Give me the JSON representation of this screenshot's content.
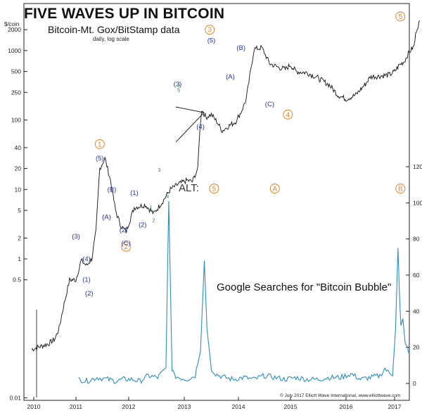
{
  "header": {
    "title": "FIVE WAVES UP IN BITCOIN",
    "unit": "$/coin",
    "subtitle": "Bitcoin-Mt. Gox/BitStamp data",
    "note": "daily, log scale",
    "credit": "© July 2017 Elliott Wave International, www.elliottwave.com",
    "alt_label": "ALT:",
    "google_label": "Google Searches for \"Bitcoin Bubble\""
  },
  "colors": {
    "price": "#111111",
    "google": "#2a8fc4",
    "wave_orange": "#e8822a",
    "wave_blue": "#2233aa",
    "wave_green": "#1a8a3a"
  },
  "chart_data": [
    {
      "type": "line",
      "name": "Bitcoin-Mt. Gox/BitStamp data",
      "scale": "log",
      "x_ticks": [
        "2010",
        "2011",
        "2012",
        "2013",
        "2014",
        "2015",
        "2016",
        "2017"
      ],
      "y_ticks": [
        "0.01",
        "0.5",
        "1",
        "2",
        "5",
        "10",
        "20",
        "40",
        "100",
        "250",
        "500",
        "1000",
        "2000"
      ],
      "ylim": [
        0.01,
        3000
      ],
      "x": [
        2009.95,
        2010.35,
        2010.5,
        2010.6,
        2010.7,
        2010.85,
        2011.0,
        2011.1,
        2011.2,
        2011.3,
        2011.38,
        2011.45,
        2011.55,
        2011.65,
        2011.75,
        2011.85,
        2011.95,
        2012.1,
        2012.3,
        2012.45,
        2012.6,
        2012.75,
        2012.9,
        2013.05,
        2013.15,
        2013.25,
        2013.28,
        2013.32,
        2013.4,
        2013.5,
        2013.6,
        2013.7,
        2013.8,
        2013.95,
        2014.05,
        2014.15,
        2014.3,
        2014.45,
        2014.6,
        2014.75,
        2014.9,
        2015.0,
        2015.1,
        2015.3,
        2015.5,
        2015.7,
        2015.85,
        2016.0,
        2016.2,
        2016.4,
        2016.5,
        2016.7,
        2016.9,
        2017.0,
        2017.1,
        2017.2,
        2017.3,
        2017.4,
        2017.45,
        2017.52
      ],
      "y": [
        0.05,
        0.06,
        0.07,
        0.1,
        0.2,
        0.5,
        0.5,
        0.95,
        0.8,
        1.0,
        2.5,
        20.0,
        28.0,
        14.0,
        5.0,
        3.0,
        2.5,
        5.5,
        6.0,
        4.5,
        6.5,
        10.0,
        12.0,
        13.5,
        13.0,
        20.0,
        60.0,
        140.0,
        110.0,
        120.0,
        95.0,
        70.0,
        80.0,
        95.0,
        130.0,
        200.0,
        1050.0,
        1100.0,
        650.0,
        580.0,
        540.0,
        620.0,
        500.0,
        480.0,
        400.0,
        320.0,
        230.0,
        200.0,
        230.0,
        330.0,
        420.0,
        430.0,
        450.0,
        500.0,
        620.0,
        700.0,
        950.0,
        1150.0,
        2000.0,
        2700.0
      ]
    },
    {
      "type": "line",
      "name": "Google Searches for \"Bitcoin Bubble\"",
      "y_ticks": [
        "0",
        "20",
        "40",
        "60",
        "80",
        "100",
        "120"
      ],
      "ylim": [
        0,
        125
      ],
      "x": [
        2011.05,
        2011.2,
        2011.4,
        2011.6,
        2011.75,
        2011.9,
        2012.05,
        2012.2,
        2012.35,
        2012.52,
        2012.67,
        2012.72,
        2012.78,
        2012.82,
        2012.9,
        2013.05,
        2013.2,
        2013.3,
        2013.37,
        2013.42,
        2013.5,
        2013.58,
        2013.65,
        2013.75,
        2013.9,
        2014.1,
        2014.3,
        2014.5,
        2014.7,
        2014.9,
        2015.1,
        2015.3,
        2015.5,
        2015.7,
        2015.9,
        2016.1,
        2016.3,
        2016.5,
        2016.7,
        2016.8,
        2016.9,
        2016.96,
        2017.02,
        2017.07,
        2017.1,
        2017.13,
        2017.17,
        2017.22,
        2017.27,
        2017.3
      ],
      "y": [
        2,
        1,
        3,
        2,
        1,
        2,
        2,
        1,
        4,
        3,
        8,
        101,
        8,
        4,
        3,
        2,
        4,
        18,
        68,
        30,
        8,
        5,
        4,
        3,
        2,
        3,
        2,
        4,
        3,
        2,
        3,
        2,
        2,
        3,
        3,
        5,
        2,
        3,
        4,
        8,
        5,
        5,
        30,
        75,
        50,
        32,
        36,
        22,
        20,
        14
      ]
    }
  ],
  "waves": {
    "primary": [
      {
        "label": "1",
        "x": 2011.45,
        "y": 45
      },
      {
        "label": "2",
        "x": 2011.95,
        "y": 1.5
      },
      {
        "label": "3",
        "x": 2013.47,
        "y": 2000
      },
      {
        "label": "4",
        "x": 2014.95,
        "y": 120
      },
      {
        "label": "5",
        "x": 2017.12,
        "y": 3100
      }
    ],
    "alt": [
      {
        "label": "5",
        "x": 2013.55
      },
      {
        "label": "A",
        "x": 2014.7
      },
      {
        "label": "B",
        "x": 2017.12
      }
    ],
    "minor": [
      {
        "label": "(5)",
        "x": 2011.45,
        "y": 28
      },
      {
        "label": "(B)",
        "x": 2011.68,
        "y": 10
      },
      {
        "label": "(A)",
        "x": 2011.58,
        "y": 4
      },
      {
        "label": "(2)",
        "x": 2011.9,
        "y": 2.6
      },
      {
        "label": "(C)",
        "x": 2011.95,
        "y": 1.7
      },
      {
        "label": "(1)",
        "x": 2011.2,
        "y": 0.5
      },
      {
        "label": "(2)",
        "x": 2011.25,
        "y": 0.32
      },
      {
        "label": "(3)",
        "x": 2011.0,
        "y": 2.1
      },
      {
        "label": "(4)",
        "x": 2011.2,
        "y": 1.0
      },
      {
        "label": "(1)",
        "x": 2012.1,
        "y": 9
      },
      {
        "label": "(2)",
        "x": 2012.25,
        "y": 3.1
      },
      {
        "label": "(3)",
        "x": 2012.88,
        "y": 330
      },
      {
        "label": "(4)",
        "x": 2013.3,
        "y": 80
      },
      {
        "label": "(5)",
        "x": 2013.5,
        "y": 1400
      },
      {
        "label": "(A)",
        "x": 2013.85,
        "y": 420
      },
      {
        "label": "(B)",
        "x": 2014.05,
        "y": 1100
      },
      {
        "label": "(C)",
        "x": 2014.6,
        "y": 170
      }
    ],
    "sub": [
      {
        "label": "3",
        "x": 2012.9,
        "y": 300
      },
      {
        "label": "5",
        "x": 2012.9,
        "y": 300
      },
      {
        "label": "1",
        "x": 2012.4,
        "y": 5.2
      },
      {
        "label": "2",
        "x": 2012.45,
        "y": 3.4
      },
      {
        "label": "3",
        "x": 2012.55,
        "y": 18
      },
      {
        "label": "4",
        "x": 2012.7,
        "y": 7.5
      }
    ]
  }
}
